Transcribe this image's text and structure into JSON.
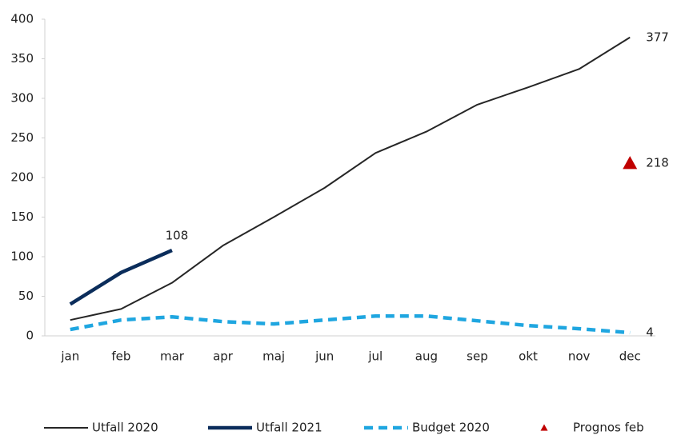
{
  "chart_data": {
    "type": "line",
    "categories": [
      "jan",
      "feb",
      "mar",
      "apr",
      "maj",
      "jun",
      "jul",
      "aug",
      "sep",
      "okt",
      "nov",
      "dec"
    ],
    "series": [
      {
        "name": "Utfall 2020",
        "color": "#262626",
        "line_width": 2,
        "dash": false,
        "values": [
          20,
          34,
          67,
          114,
          150,
          187,
          231,
          258,
          292,
          314,
          337,
          377
        ],
        "value_labels": [
          null,
          null,
          null,
          null,
          null,
          null,
          null,
          null,
          null,
          null,
          null,
          "377"
        ]
      },
      {
        "name": "Utfall 2021",
        "color": "#0b2d5b",
        "line_width": 4.5,
        "dash": false,
        "values": [
          40,
          80,
          108,
          null,
          null,
          null,
          null,
          null,
          null,
          null,
          null,
          null
        ],
        "value_labels": [
          null,
          null,
          "108",
          null,
          null,
          null,
          null,
          null,
          null,
          null,
          null,
          null
        ]
      },
      {
        "name": "Budget 2020",
        "color": "#1fa6e0",
        "line_width": 4.5,
        "dash": true,
        "values": [
          8,
          20,
          24,
          18,
          15,
          20,
          25,
          25,
          19,
          13,
          9,
          4
        ],
        "value_labels": [
          null,
          null,
          null,
          null,
          null,
          null,
          null,
          null,
          null,
          null,
          null,
          "4"
        ]
      },
      {
        "name": "Prognos feb",
        "color": "#c00000",
        "marker": "triangle",
        "values": [
          null,
          null,
          null,
          null,
          null,
          null,
          null,
          null,
          null,
          null,
          null,
          218
        ],
        "value_labels": [
          null,
          null,
          null,
          null,
          null,
          null,
          null,
          null,
          null,
          null,
          null,
          "218"
        ]
      }
    ],
    "ylim": [
      0,
      400
    ],
    "yticks": [
      0,
      50,
      100,
      150,
      200,
      250,
      300,
      350,
      400
    ],
    "grid": false
  }
}
